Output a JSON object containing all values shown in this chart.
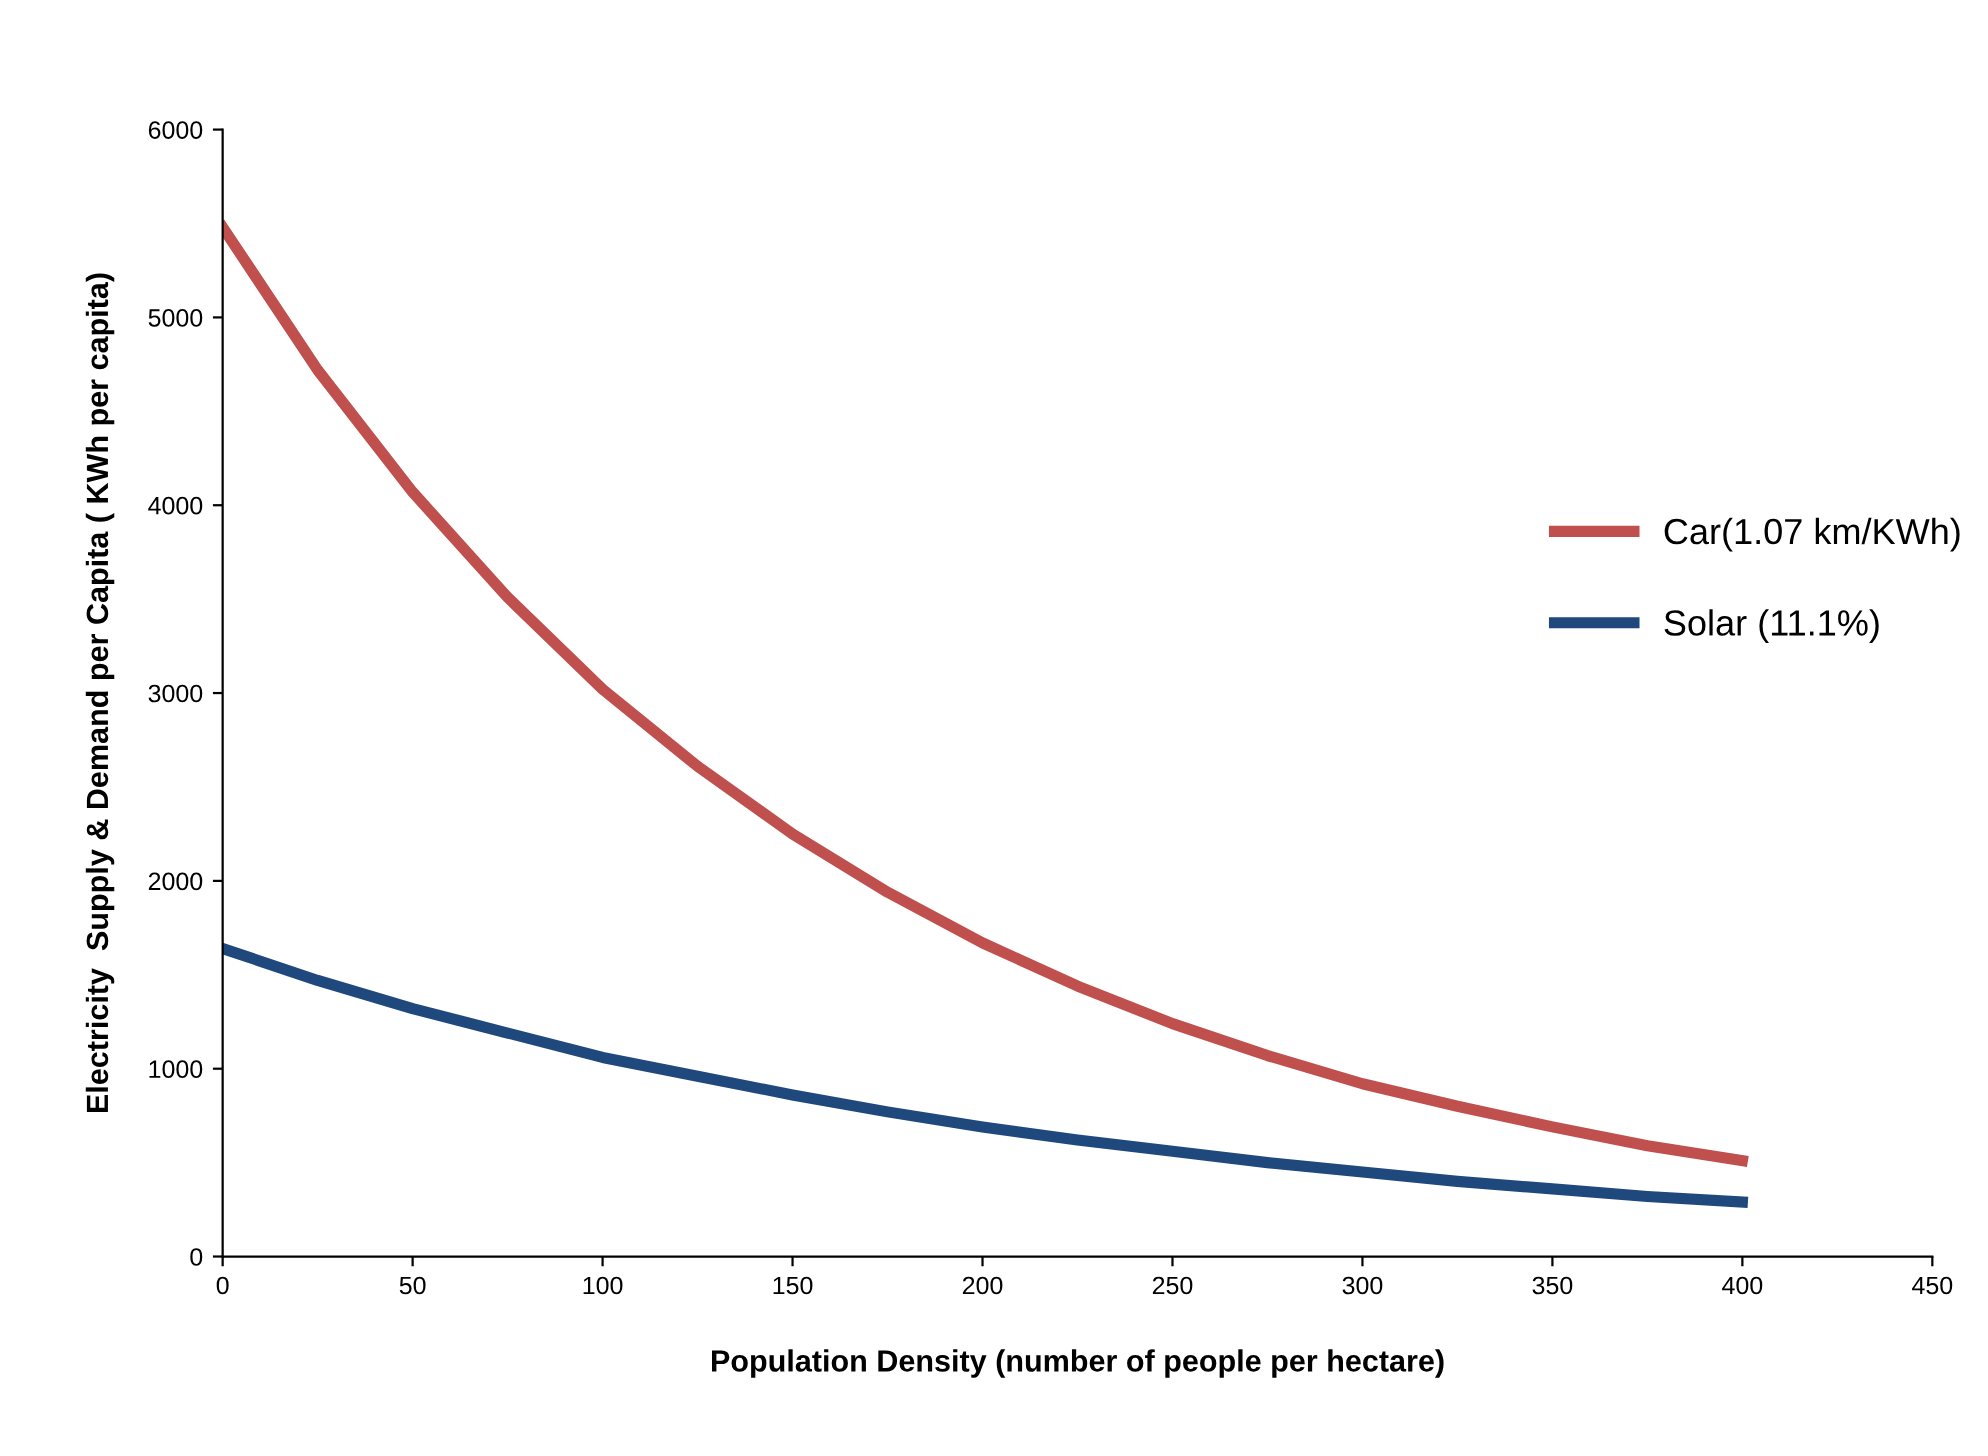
{
  "chart_data": {
    "type": "line",
    "xlabel": "Population Density (number of people per hectare)",
    "ylabel": "Electricity  Supply & Demand per Capita ( KWh per capita)",
    "x": [
      0,
      25,
      50,
      75,
      100,
      125,
      150,
      175,
      200,
      225,
      250,
      275,
      300,
      325,
      350,
      375,
      400
    ],
    "series": [
      {
        "name": "Car(1.07 km/KWh)",
        "color": "#c0504d",
        "values": [
          5480,
          4720,
          4070,
          3510,
          3020,
          2610,
          2250,
          1940,
          1670,
          1440,
          1240,
          1070,
          920,
          800,
          690,
          590,
          510
        ]
      },
      {
        "name": "Solar (11.1%)",
        "color": "#1f497d",
        "values": [
          1640,
          1470,
          1320,
          1190,
          1060,
          960,
          860,
          770,
          690,
          620,
          560,
          500,
          450,
          400,
          360,
          320,
          290
        ]
      }
    ],
    "xlim": [
      0,
      450
    ],
    "xticks": [
      0,
      50,
      100,
      150,
      200,
      250,
      300,
      350,
      400,
      450
    ],
    "ylim": [
      0,
      6000
    ],
    "yticks": [
      0,
      1000,
      2000,
      3000,
      4000,
      5000,
      6000
    ],
    "grid": false,
    "legend": "right",
    "marker": "none",
    "line_style": "solid"
  }
}
